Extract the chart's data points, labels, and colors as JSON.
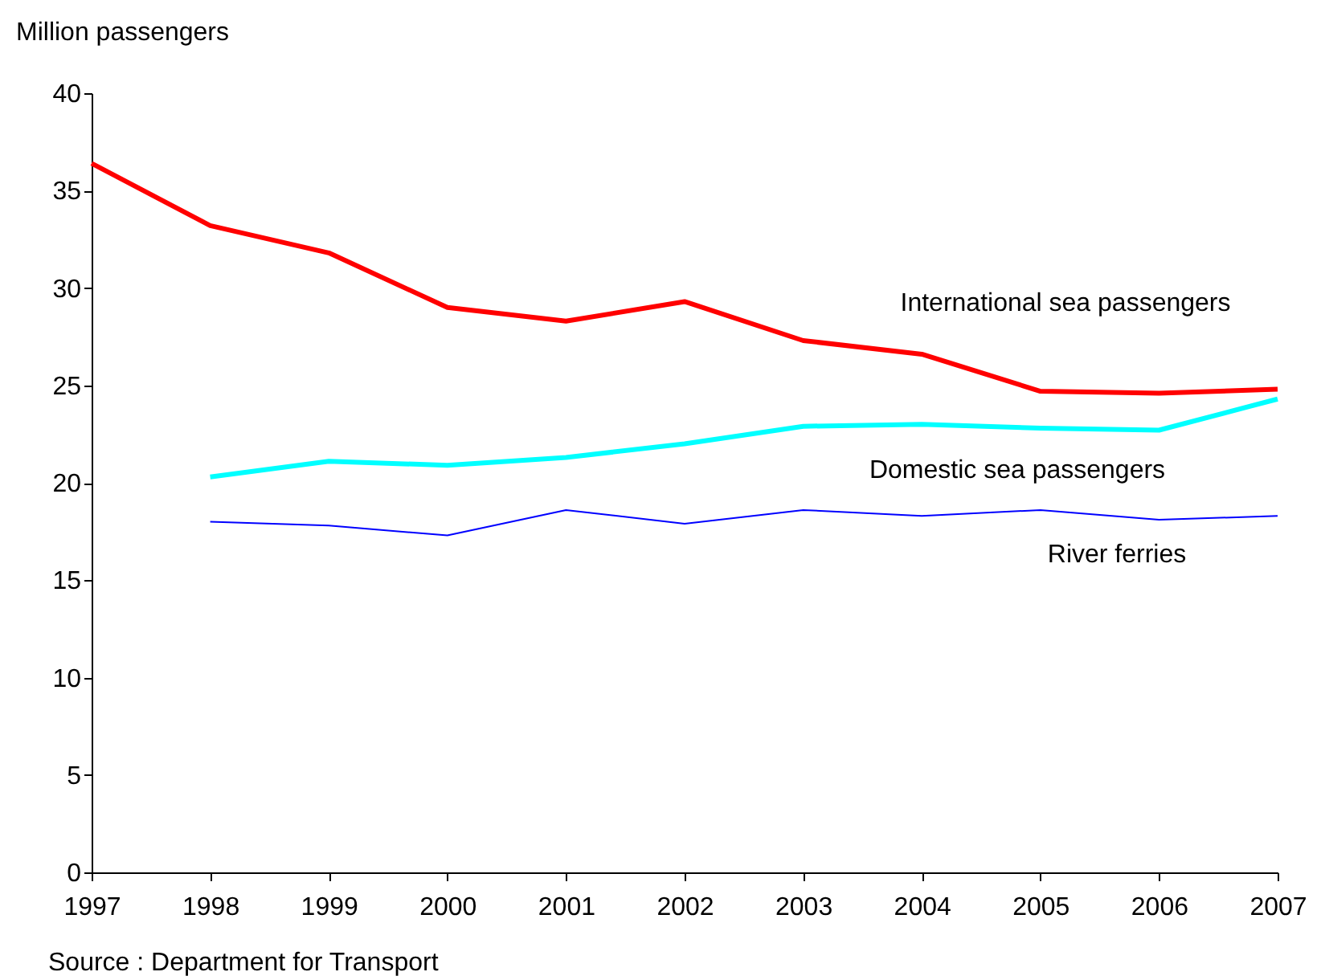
{
  "chart_data": {
    "type": "line",
    "ylabel": "Million passengers",
    "x": [
      1997,
      1998,
      1999,
      2000,
      2001,
      2002,
      2003,
      2004,
      2005,
      2006,
      2007
    ],
    "series": [
      {
        "name": "International sea passengers",
        "color": "#ff0000",
        "values": [
          36.4,
          33.2,
          31.8,
          29.0,
          28.3,
          29.3,
          27.3,
          26.6,
          24.7,
          24.6,
          24.8
        ]
      },
      {
        "name": "Domestic sea passengers",
        "color": "#00ffff",
        "values": [
          null,
          20.3,
          21.1,
          20.9,
          21.3,
          22.0,
          22.9,
          23.0,
          22.8,
          22.7,
          24.3
        ]
      },
      {
        "name": "River ferries",
        "color": "#0000ff",
        "values": [
          null,
          18.0,
          17.8,
          17.3,
          18.6,
          17.9,
          18.6,
          18.3,
          18.6,
          18.1,
          18.3
        ]
      }
    ],
    "xlim": [
      1997,
      2007
    ],
    "xticks": [
      1997,
      1998,
      1999,
      2000,
      2001,
      2002,
      2003,
      2004,
      2005,
      2006,
      2007
    ],
    "ylim": [
      0,
      40
    ],
    "yticks": [
      0,
      5,
      10,
      15,
      20,
      25,
      30,
      35,
      40
    ],
    "grid": false,
    "legend": false,
    "marker": "none",
    "line_style": "solid",
    "annotations": [
      "Source : Department for Transport"
    ]
  }
}
